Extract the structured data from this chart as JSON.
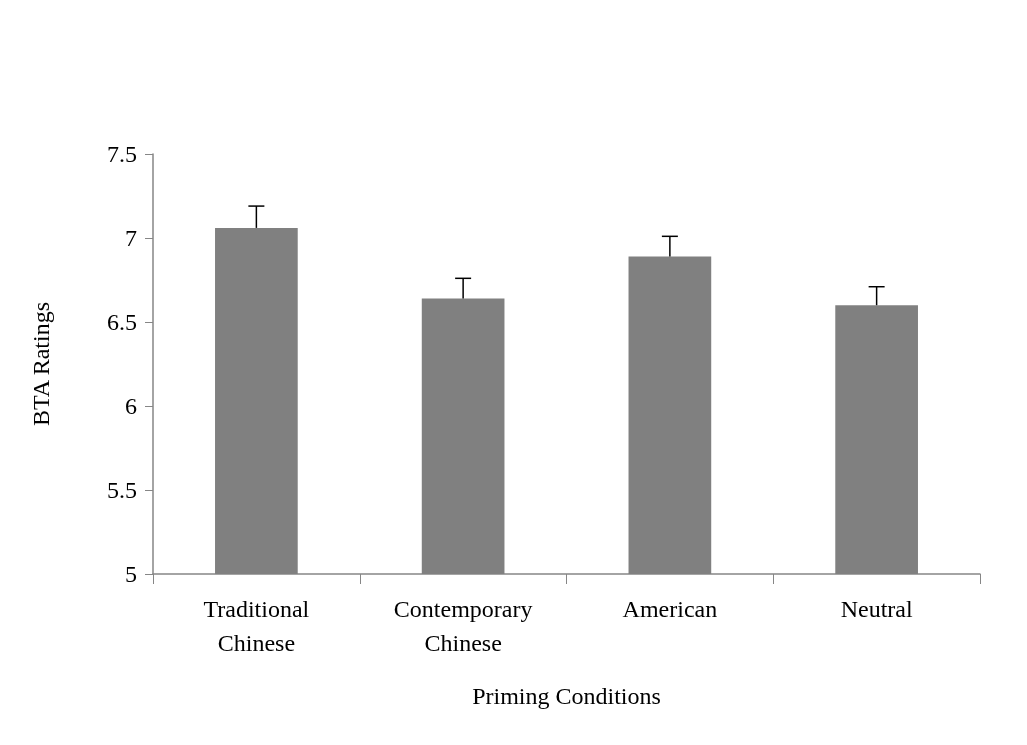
{
  "chart_data": {
    "type": "bar",
    "xlabel": "Priming Conditions",
    "ylabel": "BTA Ratings",
    "categories": [
      "Traditional\nChinese",
      "Contemporary\nChinese",
      "American",
      "Neutral"
    ],
    "values": [
      7.06,
      6.64,
      6.89,
      6.6
    ],
    "errors": [
      [
        7.06,
        7.19
      ],
      [
        6.64,
        6.76
      ],
      [
        6.89,
        7.01
      ],
      [
        6.6,
        6.71
      ]
    ],
    "color": "#808080",
    "ylim": [
      5,
      7.5
    ],
    "yticks": [
      5,
      5.5,
      6,
      6.5,
      7,
      7.5
    ],
    "grid": false
  }
}
